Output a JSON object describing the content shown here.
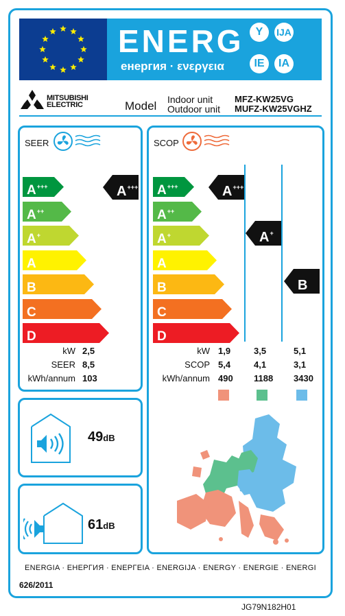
{
  "header": {
    "title": "ENERG",
    "subtitle": "енергия · ενεργεια",
    "lang_codes": [
      "Y",
      "IJA",
      "IE",
      "IA"
    ]
  },
  "brand": {
    "line1": "MITSUBISHI",
    "line2": "ELECTRIC"
  },
  "model": {
    "label": "Model",
    "indoor_label": "Indoor unit",
    "outdoor_label": "Outdoor unit",
    "indoor_value": "MFZ-KW25VG",
    "outdoor_value": "MUFZ-KW25VGHZ"
  },
  "seer": {
    "title": "SEER",
    "rating": "A",
    "rating_sup": "+++",
    "rows": [
      {
        "label": "kW",
        "value": "2,5"
      },
      {
        "label": "SEER",
        "value": "8,5"
      },
      {
        "label": "kWh/annum",
        "value": "103"
      }
    ]
  },
  "scop": {
    "title": "SCOP",
    "ratings": [
      {
        "letter": "A",
        "sup": "+++"
      },
      {
        "letter": "A",
        "sup": "+"
      },
      {
        "letter": "B",
        "sup": ""
      }
    ],
    "rows": [
      {
        "label": "kW",
        "values": [
          "1,9",
          "3,5",
          "5,1"
        ]
      },
      {
        "label": "SCOP",
        "values": [
          "5,4",
          "4,1",
          "3,1"
        ]
      },
      {
        "label": "kWh/annum",
        "values": [
          "490",
          "1188",
          "3430"
        ]
      }
    ],
    "zone_colors": [
      "#f0937a",
      "#5cc08e",
      "#6cbce9"
    ]
  },
  "scale": [
    {
      "letter": "A",
      "sup": "+++",
      "color": "#00963f"
    },
    {
      "letter": "A",
      "sup": "++",
      "color": "#54b948"
    },
    {
      "letter": "A",
      "sup": "+",
      "color": "#bfd730"
    },
    {
      "letter": "A",
      "sup": "",
      "color": "#fff200"
    },
    {
      "letter": "B",
      "sup": "",
      "color": "#fcb813"
    },
    {
      "letter": "C",
      "sup": "",
      "color": "#f37021"
    },
    {
      "letter": "D",
      "sup": "",
      "color": "#ed1c24"
    }
  ],
  "noise": {
    "indoor": {
      "value": "49",
      "unit": "dB"
    },
    "outdoor": {
      "value": "61",
      "unit": "dB"
    }
  },
  "footer": {
    "languages": "ENERGIA · ЕНЕРГИЯ · ΕΝΕΡΓΕΙΑ · ENERGIJA · ENERGY · ENERGIE · ENERGI",
    "regulation": "626/2011",
    "code": "JG79N182H01"
  },
  "icons": {
    "eu_flag": "eu-flag-icon",
    "fan": "fan-icon",
    "house_speaker": "house-speaker-icon",
    "map": "europe-map-icon"
  }
}
